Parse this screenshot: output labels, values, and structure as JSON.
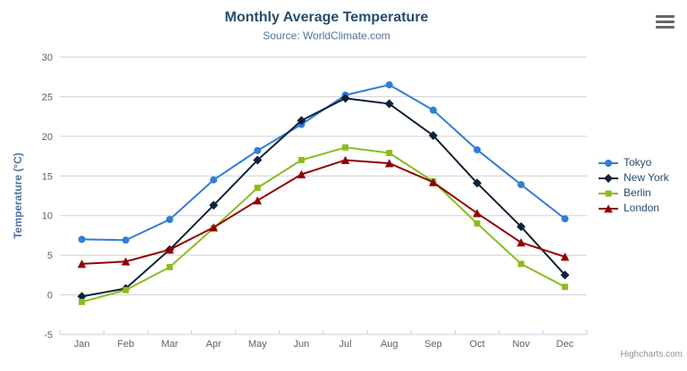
{
  "chart_data": {
    "type": "line",
    "title": "Monthly Average Temperature",
    "subtitle": "Source: WorldClimate.com",
    "categories": [
      "Jan",
      "Feb",
      "Mar",
      "Apr",
      "May",
      "Jun",
      "Jul",
      "Aug",
      "Sep",
      "Oct",
      "Nov",
      "Dec"
    ],
    "series": [
      {
        "name": "Tokyo",
        "color": "#2f7ed8",
        "marker": "circle",
        "values": [
          7.0,
          6.9,
          9.5,
          14.5,
          18.2,
          21.5,
          25.2,
          26.5,
          23.3,
          18.3,
          13.9,
          9.6
        ]
      },
      {
        "name": "New York",
        "color": "#0d233a",
        "marker": "diamond",
        "values": [
          -0.2,
          0.8,
          5.7,
          11.3,
          17.0,
          22.0,
          24.8,
          24.1,
          20.1,
          14.1,
          8.6,
          2.5
        ]
      },
      {
        "name": "Berlin",
        "color": "#8bbc21",
        "marker": "square",
        "values": [
          -0.9,
          0.6,
          3.5,
          8.4,
          13.5,
          17.0,
          18.6,
          17.9,
          14.3,
          9.0,
          3.9,
          1.0
        ]
      },
      {
        "name": "London",
        "color": "#910000",
        "marker": "triangle",
        "values": [
          3.9,
          4.2,
          5.7,
          8.5,
          11.9,
          15.2,
          17.0,
          16.6,
          14.2,
          10.3,
          6.6,
          4.8
        ]
      }
    ],
    "xlabel": "",
    "ylabel": "Temperature (°C)",
    "ylim": [
      -5,
      30
    ],
    "yticks": [
      -5,
      0,
      5,
      10,
      15,
      20,
      25,
      30
    ],
    "grid": true,
    "legend_position": "right"
  },
  "ui": {
    "credits": "Highcharts.com"
  },
  "colors": {
    "background": "#ffffff",
    "title": "#274b6d",
    "subtitle": "#4d759e",
    "axis_label": "#606060",
    "axis_title": "#4d759e",
    "grid_line": "#d0d0d0",
    "axis_line": "#c0d0e0",
    "legend_text": "#274b6d",
    "credits_text": "#909090"
  }
}
